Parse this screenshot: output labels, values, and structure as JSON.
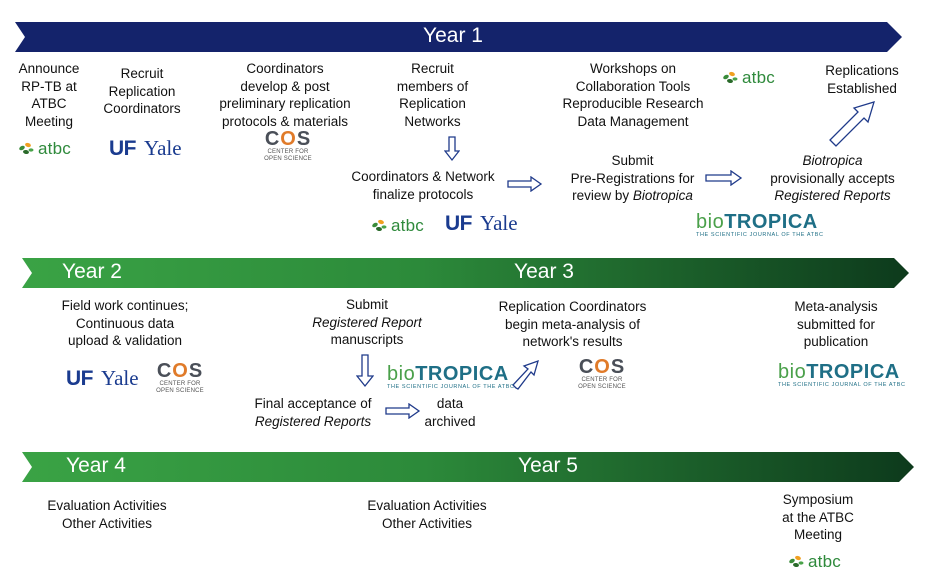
{
  "banners": [
    {
      "labels": [
        "Year 1"
      ]
    },
    {
      "labels": [
        "Year 2",
        "Year 3"
      ]
    },
    {
      "labels": [
        "Year 4",
        "Year 5"
      ]
    }
  ],
  "row1": {
    "announce": [
      "Announce",
      "RP-TB at",
      "ATBC",
      "Meeting"
    ],
    "recruit_coord": [
      "Recruit",
      "Replication",
      "Coordinators"
    ],
    "develop": [
      "Coordinators",
      "develop & post",
      "preliminary replication",
      "protocols & materials"
    ],
    "recruit_members": [
      "Recruit",
      "members of",
      "Replication",
      "Networks"
    ],
    "finalize": [
      "Coordinators & Network",
      "finalize protocols"
    ],
    "workshops": [
      "Workshops on",
      "Collaboration Tools",
      "Reproducible Research",
      "Data Management"
    ],
    "submit_prereg": {
      "l1": "Submit",
      "l2": "Pre-Registrations for",
      "l3_pre": "review by ",
      "l3_em": "Biotropica"
    },
    "replications": [
      "Replications",
      "Established"
    ],
    "accepts": {
      "l1_em": "Biotropica",
      "l2": "provisionally accepts",
      "l3_em": "Registered Reports"
    }
  },
  "row2": {
    "fieldwork": [
      "Field work continues;",
      "Continuous data",
      "upload & validation"
    ],
    "submit_rr": {
      "l1": "Submit",
      "l2_em": "Registered Report",
      "l3": "manuscripts"
    },
    "final_accept": {
      "l1": "Final acceptance of",
      "l2_em": "Registered Reports"
    },
    "archived": [
      "data",
      "archived"
    ],
    "meta_begin": [
      "Replication Coordinators",
      "begin meta-analysis of",
      "network's results"
    ],
    "meta_submit": [
      "Meta-analysis",
      "submitted for",
      "publication"
    ]
  },
  "row3": {
    "eval1": [
      "Evaluation Activities",
      "Other Activities"
    ],
    "eval2": [
      "Evaluation Activities",
      "Other Activities"
    ],
    "symposium": [
      "Symposium",
      "at the ATBC",
      "Meeting"
    ]
  },
  "logos": {
    "atbc": "atbc",
    "uf": "UF",
    "yale": "Yale",
    "cos_big_c": "C",
    "cos_big_o": "O",
    "cos_big_s": "S",
    "cos_small1": "CENTER FOR",
    "cos_small2": "OPEN SCIENCE",
    "bio_a": "bio",
    "bio_b": "TROPICA",
    "bio_sub": "THE SCIENTIFIC JOURNAL OF THE ATBC"
  },
  "colors": {
    "year1_banner": "#14236b",
    "green_start": "#3aa345",
    "green_end": "#0d3a1c",
    "atbc_green": "#2f8a3c",
    "uf_blue": "#1a3b8f",
    "arrow_stroke": "#1f3a8a"
  }
}
